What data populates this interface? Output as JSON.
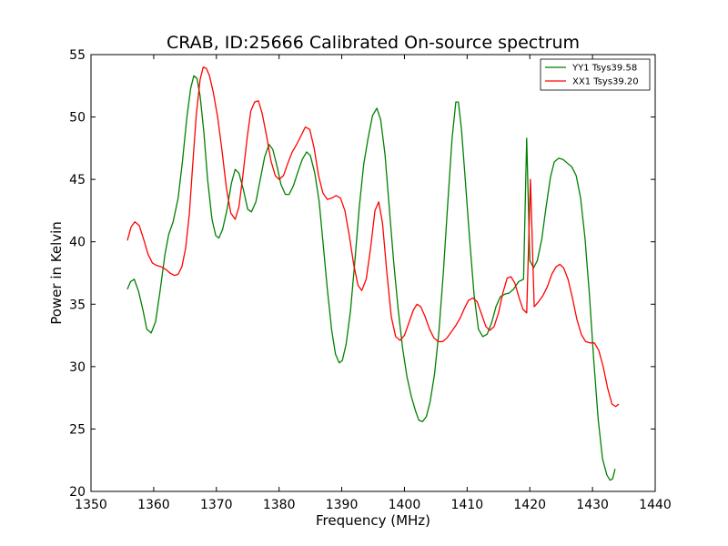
{
  "chart_data": {
    "type": "line",
    "title": "CRAB, ID:25666 Calibrated On-source spectrum",
    "xlabel": "Frequency (MHz)",
    "ylabel": "Power in Kelvin",
    "xlim": [
      1350,
      1440
    ],
    "ylim": [
      20,
      55
    ],
    "xticks": [
      1350,
      1360,
      1370,
      1380,
      1390,
      1400,
      1410,
      1420,
      1430,
      1440
    ],
    "yticks": [
      20,
      25,
      30,
      35,
      40,
      45,
      50,
      55
    ],
    "grid": false,
    "legend_position": "top-right",
    "series": [
      {
        "name": "YY1 Tsys39.58",
        "color": "#008000",
        "points": [
          [
            1355.8,
            36.2
          ],
          [
            1356.3,
            36.8
          ],
          [
            1356.9,
            37.0
          ],
          [
            1357.6,
            36.0
          ],
          [
            1358.3,
            34.5
          ],
          [
            1358.9,
            33.0
          ],
          [
            1359.6,
            32.7
          ],
          [
            1360.3,
            33.6
          ],
          [
            1361.0,
            36.0
          ],
          [
            1361.8,
            39.0
          ],
          [
            1362.4,
            40.6
          ],
          [
            1363.1,
            41.6
          ],
          [
            1363.9,
            43.5
          ],
          [
            1364.6,
            46.5
          ],
          [
            1365.3,
            50.0
          ],
          [
            1365.9,
            52.3
          ],
          [
            1366.4,
            53.3
          ],
          [
            1366.9,
            53.1
          ],
          [
            1367.4,
            51.7
          ],
          [
            1368.0,
            48.8
          ],
          [
            1368.6,
            45.0
          ],
          [
            1369.3,
            41.8
          ],
          [
            1369.9,
            40.5
          ],
          [
            1370.4,
            40.3
          ],
          [
            1371.0,
            41.0
          ],
          [
            1371.7,
            42.6
          ],
          [
            1372.4,
            44.7
          ],
          [
            1373.0,
            45.8
          ],
          [
            1373.6,
            45.5
          ],
          [
            1374.3,
            44.2
          ],
          [
            1375.0,
            42.6
          ],
          [
            1375.6,
            42.4
          ],
          [
            1376.3,
            43.2
          ],
          [
            1377.0,
            45.0
          ],
          [
            1377.7,
            46.8
          ],
          [
            1378.4,
            47.8
          ],
          [
            1379.0,
            47.4
          ],
          [
            1379.7,
            46.0
          ],
          [
            1380.3,
            44.6
          ],
          [
            1381.0,
            43.8
          ],
          [
            1381.6,
            43.8
          ],
          [
            1382.3,
            44.5
          ],
          [
            1383.0,
            45.6
          ],
          [
            1383.7,
            46.6
          ],
          [
            1384.4,
            47.2
          ],
          [
            1385.0,
            46.9
          ],
          [
            1385.7,
            45.5
          ],
          [
            1386.4,
            43.2
          ],
          [
            1387.0,
            40.0
          ],
          [
            1387.7,
            36.2
          ],
          [
            1388.4,
            32.9
          ],
          [
            1389.0,
            31.0
          ],
          [
            1389.6,
            30.3
          ],
          [
            1390.1,
            30.5
          ],
          [
            1390.7,
            31.8
          ],
          [
            1391.4,
            34.5
          ],
          [
            1392.1,
            38.5
          ],
          [
            1392.8,
            42.8
          ],
          [
            1393.5,
            46.2
          ],
          [
            1394.2,
            48.3
          ],
          [
            1394.9,
            50.1
          ],
          [
            1395.6,
            50.7
          ],
          [
            1396.2,
            49.8
          ],
          [
            1396.9,
            47.0
          ],
          [
            1397.6,
            42.6
          ],
          [
            1398.3,
            38.3
          ],
          [
            1399.0,
            34.6
          ],
          [
            1399.7,
            31.5
          ],
          [
            1400.4,
            29.2
          ],
          [
            1401.1,
            27.6
          ],
          [
            1401.8,
            26.4
          ],
          [
            1402.3,
            25.7
          ],
          [
            1402.9,
            25.6
          ],
          [
            1403.5,
            26.0
          ],
          [
            1404.1,
            27.2
          ],
          [
            1404.8,
            29.4
          ],
          [
            1405.5,
            32.8
          ],
          [
            1406.2,
            37.5
          ],
          [
            1406.9,
            43.0
          ],
          [
            1407.6,
            48.3
          ],
          [
            1408.2,
            51.2
          ],
          [
            1408.6,
            51.2
          ],
          [
            1409.1,
            49.0
          ],
          [
            1409.7,
            45.0
          ],
          [
            1410.4,
            40.2
          ],
          [
            1411.1,
            35.8
          ],
          [
            1411.8,
            33.0
          ],
          [
            1412.5,
            32.4
          ],
          [
            1413.2,
            32.6
          ],
          [
            1413.9,
            33.5
          ],
          [
            1414.6,
            34.8
          ],
          [
            1415.3,
            35.6
          ],
          [
            1416.0,
            35.8
          ],
          [
            1416.7,
            35.9
          ],
          [
            1417.4,
            36.2
          ],
          [
            1418.2,
            36.8
          ],
          [
            1419.0,
            37.0
          ],
          [
            1419.5,
            48.3
          ],
          [
            1420.0,
            38.5
          ],
          [
            1420.6,
            37.9
          ],
          [
            1421.2,
            38.5
          ],
          [
            1421.9,
            40.2
          ],
          [
            1422.6,
            42.8
          ],
          [
            1423.3,
            45.2
          ],
          [
            1423.9,
            46.4
          ],
          [
            1424.6,
            46.7
          ],
          [
            1425.3,
            46.6
          ],
          [
            1426.0,
            46.3
          ],
          [
            1426.7,
            46.0
          ],
          [
            1427.4,
            45.3
          ],
          [
            1428.1,
            43.5
          ],
          [
            1428.8,
            40.3
          ],
          [
            1429.5,
            35.8
          ],
          [
            1430.2,
            30.5
          ],
          [
            1430.9,
            25.8
          ],
          [
            1431.6,
            22.6
          ],
          [
            1432.3,
            21.3
          ],
          [
            1432.8,
            20.9
          ],
          [
            1433.2,
            21.0
          ],
          [
            1433.6,
            21.8
          ]
        ]
      },
      {
        "name": "XX1 Tsys39.20",
        "color": "#ff0000",
        "points": [
          [
            1355.8,
            40.1
          ],
          [
            1356.4,
            41.2
          ],
          [
            1357.0,
            41.6
          ],
          [
            1357.7,
            41.3
          ],
          [
            1358.4,
            40.2
          ],
          [
            1359.1,
            39.0
          ],
          [
            1359.8,
            38.3
          ],
          [
            1360.5,
            38.1
          ],
          [
            1361.2,
            38.0
          ],
          [
            1361.9,
            37.8
          ],
          [
            1362.6,
            37.5
          ],
          [
            1363.3,
            37.3
          ],
          [
            1363.9,
            37.4
          ],
          [
            1364.5,
            38.0
          ],
          [
            1365.1,
            39.5
          ],
          [
            1365.7,
            42.3
          ],
          [
            1366.2,
            46.0
          ],
          [
            1366.8,
            50.2
          ],
          [
            1367.4,
            53.0
          ],
          [
            1367.9,
            54.0
          ],
          [
            1368.4,
            53.9
          ],
          [
            1368.9,
            53.3
          ],
          [
            1369.5,
            52.0
          ],
          [
            1370.2,
            50.0
          ],
          [
            1370.9,
            47.3
          ],
          [
            1371.6,
            44.3
          ],
          [
            1372.3,
            42.3
          ],
          [
            1373.0,
            41.8
          ],
          [
            1373.6,
            42.8
          ],
          [
            1374.2,
            45.2
          ],
          [
            1374.9,
            48.3
          ],
          [
            1375.5,
            50.5
          ],
          [
            1376.1,
            51.2
          ],
          [
            1376.7,
            51.3
          ],
          [
            1377.3,
            50.3
          ],
          [
            1378.0,
            48.5
          ],
          [
            1378.7,
            46.5
          ],
          [
            1379.4,
            45.3
          ],
          [
            1380.0,
            45.0
          ],
          [
            1380.7,
            45.3
          ],
          [
            1381.4,
            46.3
          ],
          [
            1382.1,
            47.2
          ],
          [
            1382.8,
            47.8
          ],
          [
            1383.5,
            48.5
          ],
          [
            1384.2,
            49.2
          ],
          [
            1384.9,
            49.0
          ],
          [
            1385.6,
            47.5
          ],
          [
            1386.3,
            45.3
          ],
          [
            1387.0,
            43.9
          ],
          [
            1387.7,
            43.4
          ],
          [
            1388.4,
            43.5
          ],
          [
            1389.1,
            43.7
          ],
          [
            1389.8,
            43.5
          ],
          [
            1390.5,
            42.5
          ],
          [
            1391.2,
            40.5
          ],
          [
            1391.9,
            38.2
          ],
          [
            1392.6,
            36.5
          ],
          [
            1393.2,
            36.1
          ],
          [
            1393.9,
            37.0
          ],
          [
            1394.6,
            39.5
          ],
          [
            1395.3,
            42.5
          ],
          [
            1395.9,
            43.2
          ],
          [
            1396.5,
            41.5
          ],
          [
            1397.2,
            37.5
          ],
          [
            1397.9,
            34.0
          ],
          [
            1398.6,
            32.4
          ],
          [
            1399.3,
            32.1
          ],
          [
            1400.0,
            32.5
          ],
          [
            1400.7,
            33.5
          ],
          [
            1401.4,
            34.5
          ],
          [
            1402.0,
            35.0
          ],
          [
            1402.6,
            34.8
          ],
          [
            1403.3,
            34.0
          ],
          [
            1404.0,
            33.0
          ],
          [
            1404.7,
            32.3
          ],
          [
            1405.4,
            32.0
          ],
          [
            1406.1,
            32.0
          ],
          [
            1406.8,
            32.3
          ],
          [
            1407.5,
            32.8
          ],
          [
            1408.2,
            33.3
          ],
          [
            1408.9,
            33.9
          ],
          [
            1409.6,
            34.7
          ],
          [
            1410.2,
            35.3
          ],
          [
            1410.9,
            35.5
          ],
          [
            1411.6,
            35.2
          ],
          [
            1412.3,
            34.2
          ],
          [
            1413.0,
            33.2
          ],
          [
            1413.6,
            32.9
          ],
          [
            1414.3,
            33.2
          ],
          [
            1415.0,
            34.3
          ],
          [
            1415.7,
            35.9
          ],
          [
            1416.4,
            37.1
          ],
          [
            1417.0,
            37.2
          ],
          [
            1417.6,
            36.7
          ],
          [
            1418.3,
            35.5
          ],
          [
            1418.9,
            34.6
          ],
          [
            1419.5,
            34.3
          ],
          [
            1420.1,
            45.0
          ],
          [
            1420.7,
            34.8
          ],
          [
            1421.4,
            35.2
          ],
          [
            1422.1,
            35.7
          ],
          [
            1422.8,
            36.4
          ],
          [
            1423.5,
            37.4
          ],
          [
            1424.2,
            38.0
          ],
          [
            1424.8,
            38.2
          ],
          [
            1425.4,
            37.9
          ],
          [
            1426.1,
            37.0
          ],
          [
            1426.8,
            35.5
          ],
          [
            1427.5,
            33.8
          ],
          [
            1428.2,
            32.6
          ],
          [
            1428.9,
            32.0
          ],
          [
            1429.6,
            31.9
          ],
          [
            1430.3,
            31.9
          ],
          [
            1431.0,
            31.3
          ],
          [
            1431.7,
            30.0
          ],
          [
            1432.4,
            28.3
          ],
          [
            1433.1,
            27.0
          ],
          [
            1433.7,
            26.8
          ],
          [
            1434.2,
            27.0
          ]
        ]
      }
    ]
  }
}
